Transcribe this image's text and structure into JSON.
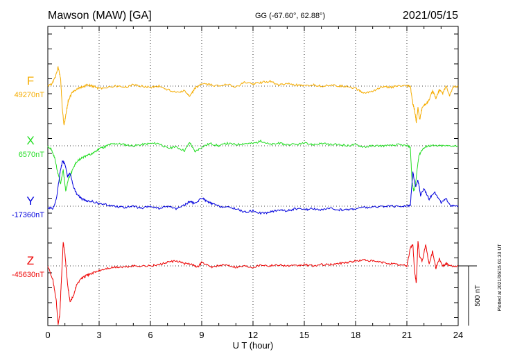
{
  "header": {
    "station": "Mawson (MAW)  [GA]",
    "coords": "GG (-67.60°,  62.88°)",
    "date": "2021/05/15"
  },
  "side_note": "Plotted at 2021/06/15 01:33 UT",
  "scale_label": "500 nT",
  "chart_data": {
    "type": "line",
    "xlabel": "U T (hour)",
    "xlim": [
      0,
      24
    ],
    "xticks": [
      "0",
      "3",
      "6",
      "9",
      "12",
      "15",
      "18",
      "21",
      "24"
    ],
    "grid": true,
    "scale_bar_nT": 500,
    "colors": {
      "F": "#f5ac00",
      "X": "#22dd22",
      "Y": "#0000dd",
      "Z": "#ee0000"
    },
    "series": [
      {
        "name": "F",
        "baseline": "49270nT",
        "x": [
          0,
          0.25,
          0.45,
          0.6,
          0.75,
          0.85,
          0.95,
          1.05,
          1.2,
          1.4,
          1.7,
          2.0,
          2.3,
          2.6,
          3.0,
          3.5,
          4.0,
          4.5,
          5.0,
          5.5,
          6.0,
          6.5,
          7.0,
          7.5,
          8.0,
          8.3,
          8.6,
          9.0,
          9.5,
          10.0,
          10.5,
          11.0,
          11.5,
          12.0,
          12.5,
          13.0,
          13.5,
          14.0,
          14.5,
          15.0,
          15.5,
          16.0,
          16.5,
          17.0,
          17.5,
          18.0,
          18.5,
          19.0,
          19.5,
          20.0,
          20.5,
          21.0,
          21.2,
          21.35,
          21.45,
          21.55,
          21.65,
          21.75,
          21.9,
          22.1,
          22.3,
          22.5,
          22.7,
          22.9,
          23.1,
          23.3,
          23.5,
          23.7,
          24.0
        ],
        "y": [
          0,
          20,
          80,
          160,
          60,
          -200,
          -330,
          -240,
          -120,
          -60,
          -20,
          -10,
          10,
          0,
          -20,
          -10,
          0,
          -10,
          10,
          0,
          -10,
          0,
          -30,
          -50,
          -40,
          -90,
          -20,
          20,
          10,
          0,
          20,
          -10,
          30,
          20,
          30,
          40,
          10,
          20,
          10,
          0,
          10,
          0,
          10,
          0,
          0,
          -20,
          -60,
          -40,
          -10,
          -10,
          0,
          0,
          0,
          -150,
          -200,
          -300,
          -180,
          -280,
          -180,
          -150,
          -120,
          -40,
          -100,
          -30,
          -60,
          0,
          -80,
          -10,
          0
        ]
      },
      {
        "name": "X",
        "baseline": "6570nT",
        "x": [
          0,
          0.2,
          0.4,
          0.6,
          0.75,
          0.9,
          1.05,
          1.2,
          1.4,
          1.6,
          1.8,
          2.0,
          2.2,
          2.5,
          2.8,
          3.0,
          3.3,
          3.6,
          4.0,
          4.5,
          5.0,
          5.5,
          6.0,
          6.5,
          7.0,
          7.5,
          8.0,
          8.3,
          8.6,
          9.0,
          9.5,
          10.0,
          10.5,
          11.0,
          11.5,
          12.0,
          12.5,
          13.0,
          13.5,
          14.0,
          14.5,
          15.0,
          15.5,
          16.0,
          16.5,
          17.0,
          17.5,
          18.0,
          18.5,
          19.0,
          19.5,
          20.0,
          20.5,
          21.0,
          21.2,
          21.3,
          21.4,
          21.5,
          21.6,
          21.7,
          21.9,
          22.2,
          22.5,
          23.0,
          23.5,
          24.0
        ],
        "y": [
          0,
          -30,
          -100,
          -240,
          -320,
          -200,
          -380,
          -280,
          -220,
          -150,
          -120,
          -100,
          -90,
          -70,
          -50,
          -20,
          -10,
          10,
          20,
          10,
          0,
          10,
          20,
          20,
          -20,
          -10,
          -40,
          30,
          -50,
          -10,
          20,
          0,
          20,
          10,
          20,
          20,
          40,
          10,
          20,
          10,
          10,
          20,
          10,
          20,
          10,
          10,
          0,
          10,
          -10,
          0,
          0,
          0,
          10,
          0,
          -10,
          -300,
          -380,
          -330,
          -200,
          -80,
          -30,
          0,
          0,
          0,
          0,
          0
        ]
      },
      {
        "name": "Y",
        "baseline": "-17360nT",
        "x": [
          0,
          0.3,
          0.5,
          0.7,
          0.85,
          1.0,
          1.15,
          1.3,
          1.5,
          1.7,
          2.0,
          2.3,
          2.6,
          3.0,
          3.5,
          4.0,
          4.5,
          5.0,
          5.5,
          6.0,
          6.5,
          7.0,
          7.5,
          8.0,
          8.3,
          8.6,
          9.0,
          9.3,
          9.6,
          10.0,
          10.5,
          11.0,
          11.5,
          12.0,
          12.5,
          13.0,
          13.5,
          14.0,
          14.5,
          15.0,
          15.5,
          16.0,
          16.5,
          17.0,
          17.5,
          18.0,
          18.5,
          19.0,
          19.5,
          20.0,
          20.5,
          21.0,
          21.2,
          21.35,
          21.5,
          21.65,
          21.8,
          22.0,
          22.3,
          22.6,
          23.0,
          23.3,
          23.6,
          24.0
        ],
        "y": [
          -10,
          -20,
          60,
          270,
          380,
          360,
          250,
          280,
          160,
          100,
          60,
          40,
          40,
          20,
          10,
          0,
          -10,
          0,
          -20,
          0,
          -20,
          0,
          -20,
          10,
          40,
          20,
          70,
          40,
          20,
          0,
          -10,
          -20,
          -50,
          -40,
          -60,
          -50,
          -30,
          -40,
          -20,
          -30,
          -20,
          -30,
          -20,
          -30,
          -30,
          -20,
          -10,
          -10,
          0,
          0,
          0,
          0,
          10,
          290,
          160,
          220,
          90,
          150,
          60,
          120,
          30,
          60,
          0,
          0
        ]
      },
      {
        "name": "Z",
        "baseline": "-45630nT",
        "x": [
          0,
          0.3,
          0.5,
          0.6,
          0.7,
          0.8,
          0.9,
          1.0,
          1.15,
          1.3,
          1.5,
          1.7,
          2.0,
          2.3,
          2.6,
          3.0,
          3.5,
          4.0,
          4.5,
          5.0,
          5.5,
          6.0,
          6.5,
          7.0,
          7.5,
          8.0,
          8.5,
          8.8,
          9.0,
          9.5,
          10.0,
          10.5,
          11.0,
          11.5,
          12.0,
          12.5,
          13.0,
          13.5,
          14.0,
          14.5,
          15.0,
          15.5,
          16.0,
          16.5,
          17.0,
          17.5,
          18.0,
          18.5,
          19.0,
          19.5,
          20.0,
          20.5,
          21.0,
          21.2,
          21.35,
          21.45,
          21.55,
          21.65,
          21.75,
          21.9,
          22.1,
          22.3,
          22.5,
          22.7,
          22.9,
          23.1,
          23.3,
          23.5,
          24.0
        ],
        "y": [
          0,
          -120,
          -300,
          -500,
          -400,
          -100,
          200,
          100,
          -150,
          -300,
          -250,
          -150,
          -100,
          -80,
          -60,
          -40,
          -20,
          -10,
          -10,
          0,
          0,
          0,
          10,
          30,
          40,
          20,
          10,
          -10,
          30,
          -10,
          0,
          10,
          -10,
          0,
          -10,
          10,
          0,
          10,
          0,
          0,
          10,
          0,
          10,
          10,
          20,
          30,
          40,
          50,
          40,
          30,
          20,
          10,
          0,
          150,
          180,
          -50,
          -140,
          200,
          80,
          40,
          180,
          10,
          120,
          -20,
          60,
          0,
          20,
          0,
          0
        ]
      }
    ]
  }
}
